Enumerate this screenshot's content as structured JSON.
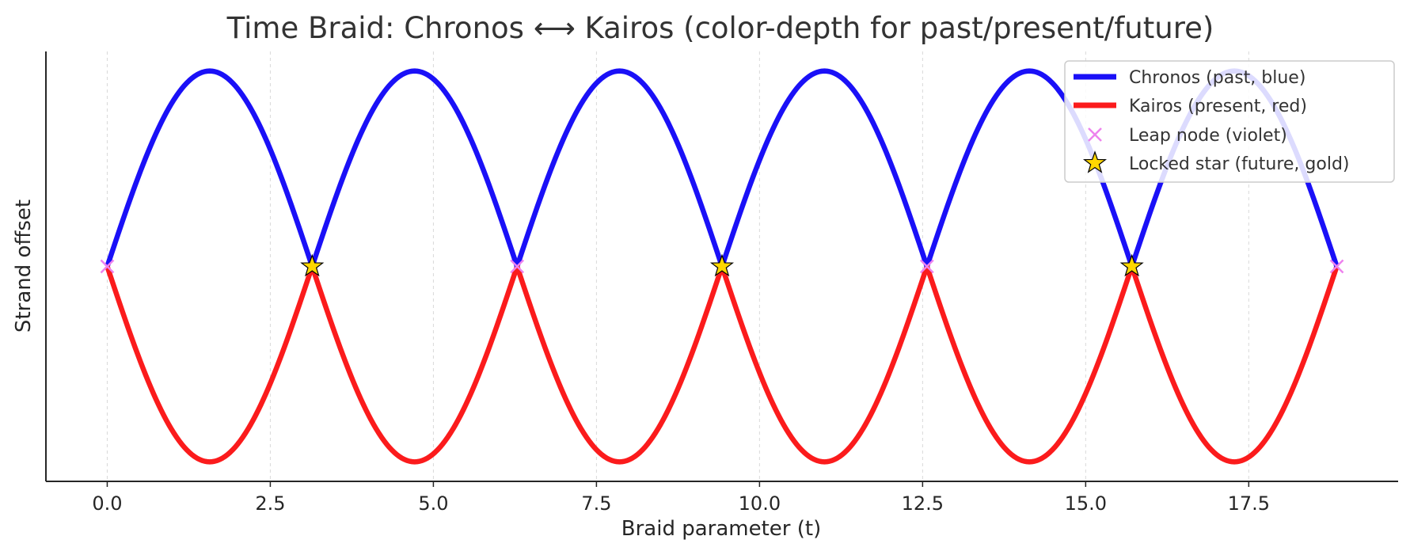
{
  "chart_data": {
    "type": "line",
    "title": "Time Braid: Chronos ⟷ Kairos (color-depth for past/present/future)",
    "xlabel": "Braid parameter (t)",
    "ylabel": "Strand offset",
    "xlim": [
      -0.94,
      19.79
    ],
    "ylim": [
      -1.1,
      1.1
    ],
    "x_ticks": [
      0.0,
      2.5,
      5.0,
      7.5,
      10.0,
      12.5,
      15.0,
      17.5
    ],
    "x_tick_labels": [
      "0.0",
      "2.5",
      "5.0",
      "7.5",
      "10.0",
      "12.5",
      "15.0",
      "17.5"
    ],
    "y_ticks_shown": false,
    "grid": "vertical dashed",
    "legend_position": "top-right",
    "colors": {
      "blue": "#1a10f7",
      "red": "#fb1b1c",
      "violet": "#ee82ee",
      "gold": "#ffd700"
    },
    "t_range": [
      0,
      18.8496
    ],
    "strands": {
      "strand_a": "sin(t)",
      "strand_b": "-sin(t)",
      "color_swaps_at_crossings": true,
      "strand_a_segment_colors": [
        "blue",
        "red",
        "blue",
        "red",
        "blue",
        "red"
      ],
      "strand_b_segment_colors": [
        "red",
        "blue",
        "red",
        "blue",
        "red",
        "blue"
      ]
    },
    "series": [
      {
        "name": "Chronos (past, blue)",
        "marker": "line",
        "color": "blue"
      },
      {
        "name": "Kairos (present, red)",
        "marker": "line",
        "color": "red"
      },
      {
        "name": "Leap node (violet)",
        "marker": "x",
        "color": "violet",
        "points": [
          [
            0.0,
            0
          ],
          [
            6.2832,
            0
          ],
          [
            12.5664,
            0
          ],
          [
            18.8496,
            0
          ]
        ]
      },
      {
        "name": "Locked star (future, gold)",
        "marker": "star",
        "color": "gold",
        "points": [
          [
            3.1416,
            0
          ],
          [
            9.4248,
            0
          ],
          [
            15.708,
            0
          ]
        ]
      }
    ]
  }
}
